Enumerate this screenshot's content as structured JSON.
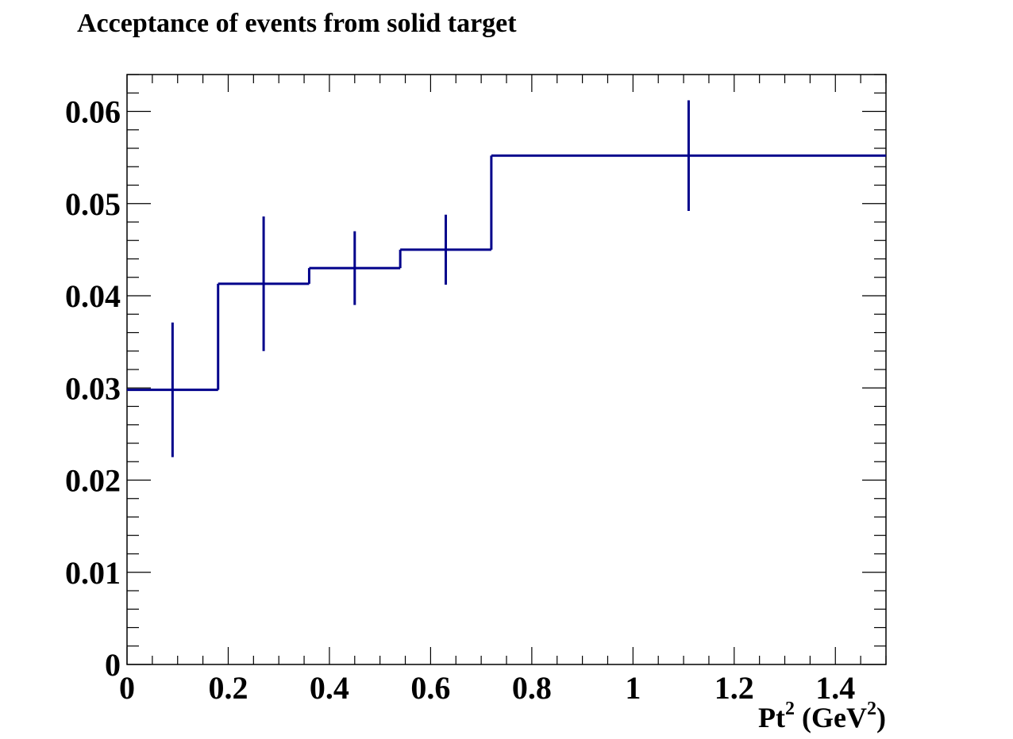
{
  "chart_data": {
    "type": "line",
    "style": "histogram-step-with-error-bars",
    "title": "Acceptance of events from solid target",
    "xlabel": {
      "base": "Pt",
      "exp": "2",
      "unit_open": " (GeV",
      "unit_exp": "2",
      "unit_close": ")"
    },
    "ylabel": "",
    "xlim": [
      0,
      1.5
    ],
    "ylim": [
      0,
      0.064
    ],
    "x_ticks": [
      {
        "value": 0,
        "label": "0"
      },
      {
        "value": 0.2,
        "label": "0.2"
      },
      {
        "value": 0.4,
        "label": "0.4"
      },
      {
        "value": 0.6,
        "label": "0.6"
      },
      {
        "value": 0.8,
        "label": "0.8"
      },
      {
        "value": 1.0,
        "label": "1"
      },
      {
        "value": 1.2,
        "label": "1.2"
      },
      {
        "value": 1.4,
        "label": "1.4"
      }
    ],
    "y_ticks": [
      {
        "value": 0,
        "label": "0"
      },
      {
        "value": 0.01,
        "label": "0.01"
      },
      {
        "value": 0.02,
        "label": "0.02"
      },
      {
        "value": 0.03,
        "label": "0.03"
      },
      {
        "value": 0.04,
        "label": "0.04"
      },
      {
        "value": 0.05,
        "label": "0.05"
      },
      {
        "value": 0.06,
        "label": "0.06"
      }
    ],
    "grid": false,
    "series_color": "#00008b",
    "bins": [
      {
        "low": 0.0,
        "high": 0.18,
        "center": 0.09,
        "value": 0.0298,
        "error": 0.0073
      },
      {
        "low": 0.18,
        "high": 0.36,
        "center": 0.27,
        "value": 0.0413,
        "error": 0.0073
      },
      {
        "low": 0.36,
        "high": 0.54,
        "center": 0.45,
        "value": 0.043,
        "error": 0.004
      },
      {
        "low": 0.54,
        "high": 0.72,
        "center": 0.63,
        "value": 0.045,
        "error": 0.0038
      },
      {
        "low": 0.72,
        "high": 1.5,
        "center": 1.11,
        "value": 0.0552,
        "error": 0.006
      }
    ]
  }
}
